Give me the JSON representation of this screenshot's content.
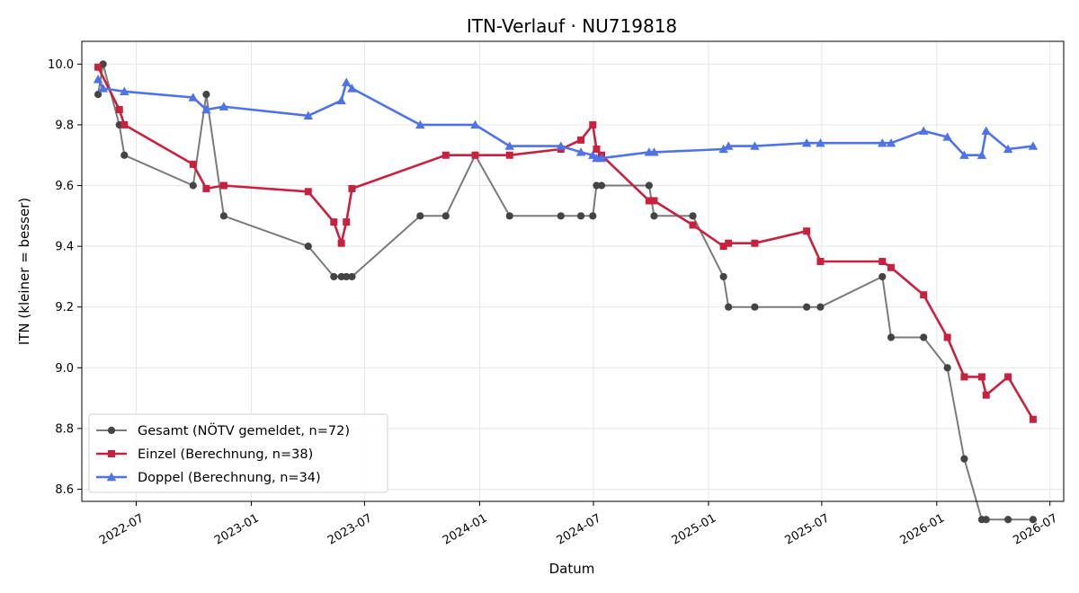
{
  "chart_data": {
    "type": "line",
    "title": "ITN-Verlauf · NU719818",
    "xlabel": "Datum",
    "ylabel": "ITN  (kleiner = besser)",
    "x_is_date": true,
    "xlim": [
      "2022-04-05",
      "2026-07-23"
    ],
    "ylim": [
      8.56,
      10.075
    ],
    "x_ticks": [
      "2022-07-01",
      "2023-01-01",
      "2023-07-01",
      "2024-01-01",
      "2024-07-01",
      "2025-01-01",
      "2025-07-01",
      "2026-01-01",
      "2026-07-01"
    ],
    "x_tick_labels": [
      "2022-07",
      "2023-01",
      "2023-07",
      "2024-01",
      "2024-07",
      "2025-01",
      "2025-07",
      "2026-01",
      "2026-07"
    ],
    "y_ticks": [
      8.6,
      8.8,
      9.0,
      9.2,
      9.4,
      9.6,
      9.8,
      10.0
    ],
    "y_tick_labels": [
      "8.6",
      "8.8",
      "9.0",
      "9.2",
      "9.4",
      "9.6",
      "9.8",
      "10.0"
    ],
    "grid": true,
    "legend_position": "lower-left",
    "series": [
      {
        "name": "Gesamt (NÖTV gemeldet, n=72)",
        "color": "#444444",
        "marker": "circle",
        "points": [
          [
            "2022-05-01",
            9.9
          ],
          [
            "2022-05-09",
            10.0
          ],
          [
            "2022-06-04",
            9.8
          ],
          [
            "2022-06-12",
            9.7
          ],
          [
            "2022-09-30",
            9.6
          ],
          [
            "2022-10-21",
            9.9
          ],
          [
            "2022-11-18",
            9.5
          ],
          [
            "2023-04-02",
            9.4
          ],
          [
            "2023-05-13",
            9.3
          ],
          [
            "2023-05-25",
            9.3
          ],
          [
            "2023-06-02",
            9.3
          ],
          [
            "2023-06-11",
            9.3
          ],
          [
            "2023-09-28",
            9.5
          ],
          [
            "2023-11-08",
            9.5
          ],
          [
            "2023-12-25",
            9.7
          ],
          [
            "2024-02-18",
            9.5
          ],
          [
            "2024-05-10",
            9.5
          ],
          [
            "2024-06-11",
            9.5
          ],
          [
            "2024-06-30",
            9.5
          ],
          [
            "2024-07-06",
            9.6
          ],
          [
            "2024-07-14",
            9.6
          ],
          [
            "2024-09-28",
            9.6
          ],
          [
            "2024-10-06",
            9.5
          ],
          [
            "2024-12-07",
            9.5
          ],
          [
            "2025-01-25",
            9.3
          ],
          [
            "2025-02-02",
            9.2
          ],
          [
            "2025-03-16",
            9.2
          ],
          [
            "2025-06-07",
            9.2
          ],
          [
            "2025-06-29",
            9.2
          ],
          [
            "2025-10-06",
            9.3
          ],
          [
            "2025-10-20",
            9.1
          ],
          [
            "2025-12-11",
            9.1
          ],
          [
            "2026-01-18",
            9.0
          ],
          [
            "2026-02-14",
            8.7
          ],
          [
            "2026-03-14",
            8.5
          ],
          [
            "2026-03-21",
            8.5
          ],
          [
            "2026-04-25",
            8.5
          ],
          [
            "2026-06-04",
            8.5
          ]
        ]
      },
      {
        "name": "Einzel (Berechnung, n=38)",
        "color": "#c8203f",
        "marker": "square",
        "points": [
          [
            "2022-05-01",
            9.99
          ],
          [
            "2022-06-04",
            9.85
          ],
          [
            "2022-06-12",
            9.8
          ],
          [
            "2022-09-30",
            9.67
          ],
          [
            "2022-10-21",
            9.59
          ],
          [
            "2022-11-18",
            9.6
          ],
          [
            "2023-04-02",
            9.58
          ],
          [
            "2023-05-13",
            9.48
          ],
          [
            "2023-05-25",
            9.41
          ],
          [
            "2023-06-02",
            9.48
          ],
          [
            "2023-06-11",
            9.59
          ],
          [
            "2023-11-08",
            9.7
          ],
          [
            "2023-12-25",
            9.7
          ],
          [
            "2024-02-18",
            9.7
          ],
          [
            "2024-05-10",
            9.72
          ],
          [
            "2024-06-11",
            9.75
          ],
          [
            "2024-06-30",
            9.8
          ],
          [
            "2024-07-06",
            9.72
          ],
          [
            "2024-07-14",
            9.7
          ],
          [
            "2024-09-28",
            9.55
          ],
          [
            "2024-10-06",
            9.55
          ],
          [
            "2024-12-07",
            9.47
          ],
          [
            "2025-01-25",
            9.4
          ],
          [
            "2025-02-02",
            9.41
          ],
          [
            "2025-03-16",
            9.41
          ],
          [
            "2025-06-07",
            9.45
          ],
          [
            "2025-06-29",
            9.35
          ],
          [
            "2025-10-06",
            9.35
          ],
          [
            "2025-10-20",
            9.33
          ],
          [
            "2025-12-11",
            9.24
          ],
          [
            "2026-01-18",
            9.1
          ],
          [
            "2026-02-14",
            8.97
          ],
          [
            "2026-03-14",
            8.97
          ],
          [
            "2026-03-21",
            8.91
          ],
          [
            "2026-04-25",
            8.97
          ],
          [
            "2026-06-04",
            8.83
          ]
        ]
      },
      {
        "name": "Doppel (Berechnung, n=34)",
        "color": "#4e72e8",
        "marker": "triangle",
        "points": [
          [
            "2022-05-01",
            9.95
          ],
          [
            "2022-05-09",
            9.92
          ],
          [
            "2022-06-12",
            9.91
          ],
          [
            "2022-09-30",
            9.89
          ],
          [
            "2022-10-21",
            9.85
          ],
          [
            "2022-11-18",
            9.86
          ],
          [
            "2023-04-02",
            9.83
          ],
          [
            "2023-05-25",
            9.88
          ],
          [
            "2023-06-02",
            9.94
          ],
          [
            "2023-06-11",
            9.92
          ],
          [
            "2023-09-28",
            9.8
          ],
          [
            "2023-12-25",
            9.8
          ],
          [
            "2024-02-18",
            9.73
          ],
          [
            "2024-05-10",
            9.73
          ],
          [
            "2024-06-11",
            9.71
          ],
          [
            "2024-06-30",
            9.7
          ],
          [
            "2024-07-06",
            9.69
          ],
          [
            "2024-07-14",
            9.69
          ],
          [
            "2024-09-28",
            9.71
          ],
          [
            "2024-10-06",
            9.71
          ],
          [
            "2025-01-25",
            9.72
          ],
          [
            "2025-02-02",
            9.73
          ],
          [
            "2025-03-16",
            9.73
          ],
          [
            "2025-06-07",
            9.74
          ],
          [
            "2025-06-29",
            9.74
          ],
          [
            "2025-10-06",
            9.74
          ],
          [
            "2025-10-20",
            9.74
          ],
          [
            "2025-12-11",
            9.78
          ],
          [
            "2026-01-18",
            9.76
          ],
          [
            "2026-02-14",
            9.7
          ],
          [
            "2026-03-14",
            9.7
          ],
          [
            "2026-03-21",
            9.78
          ],
          [
            "2026-04-25",
            9.72
          ],
          [
            "2026-06-04",
            9.73
          ]
        ]
      }
    ]
  }
}
